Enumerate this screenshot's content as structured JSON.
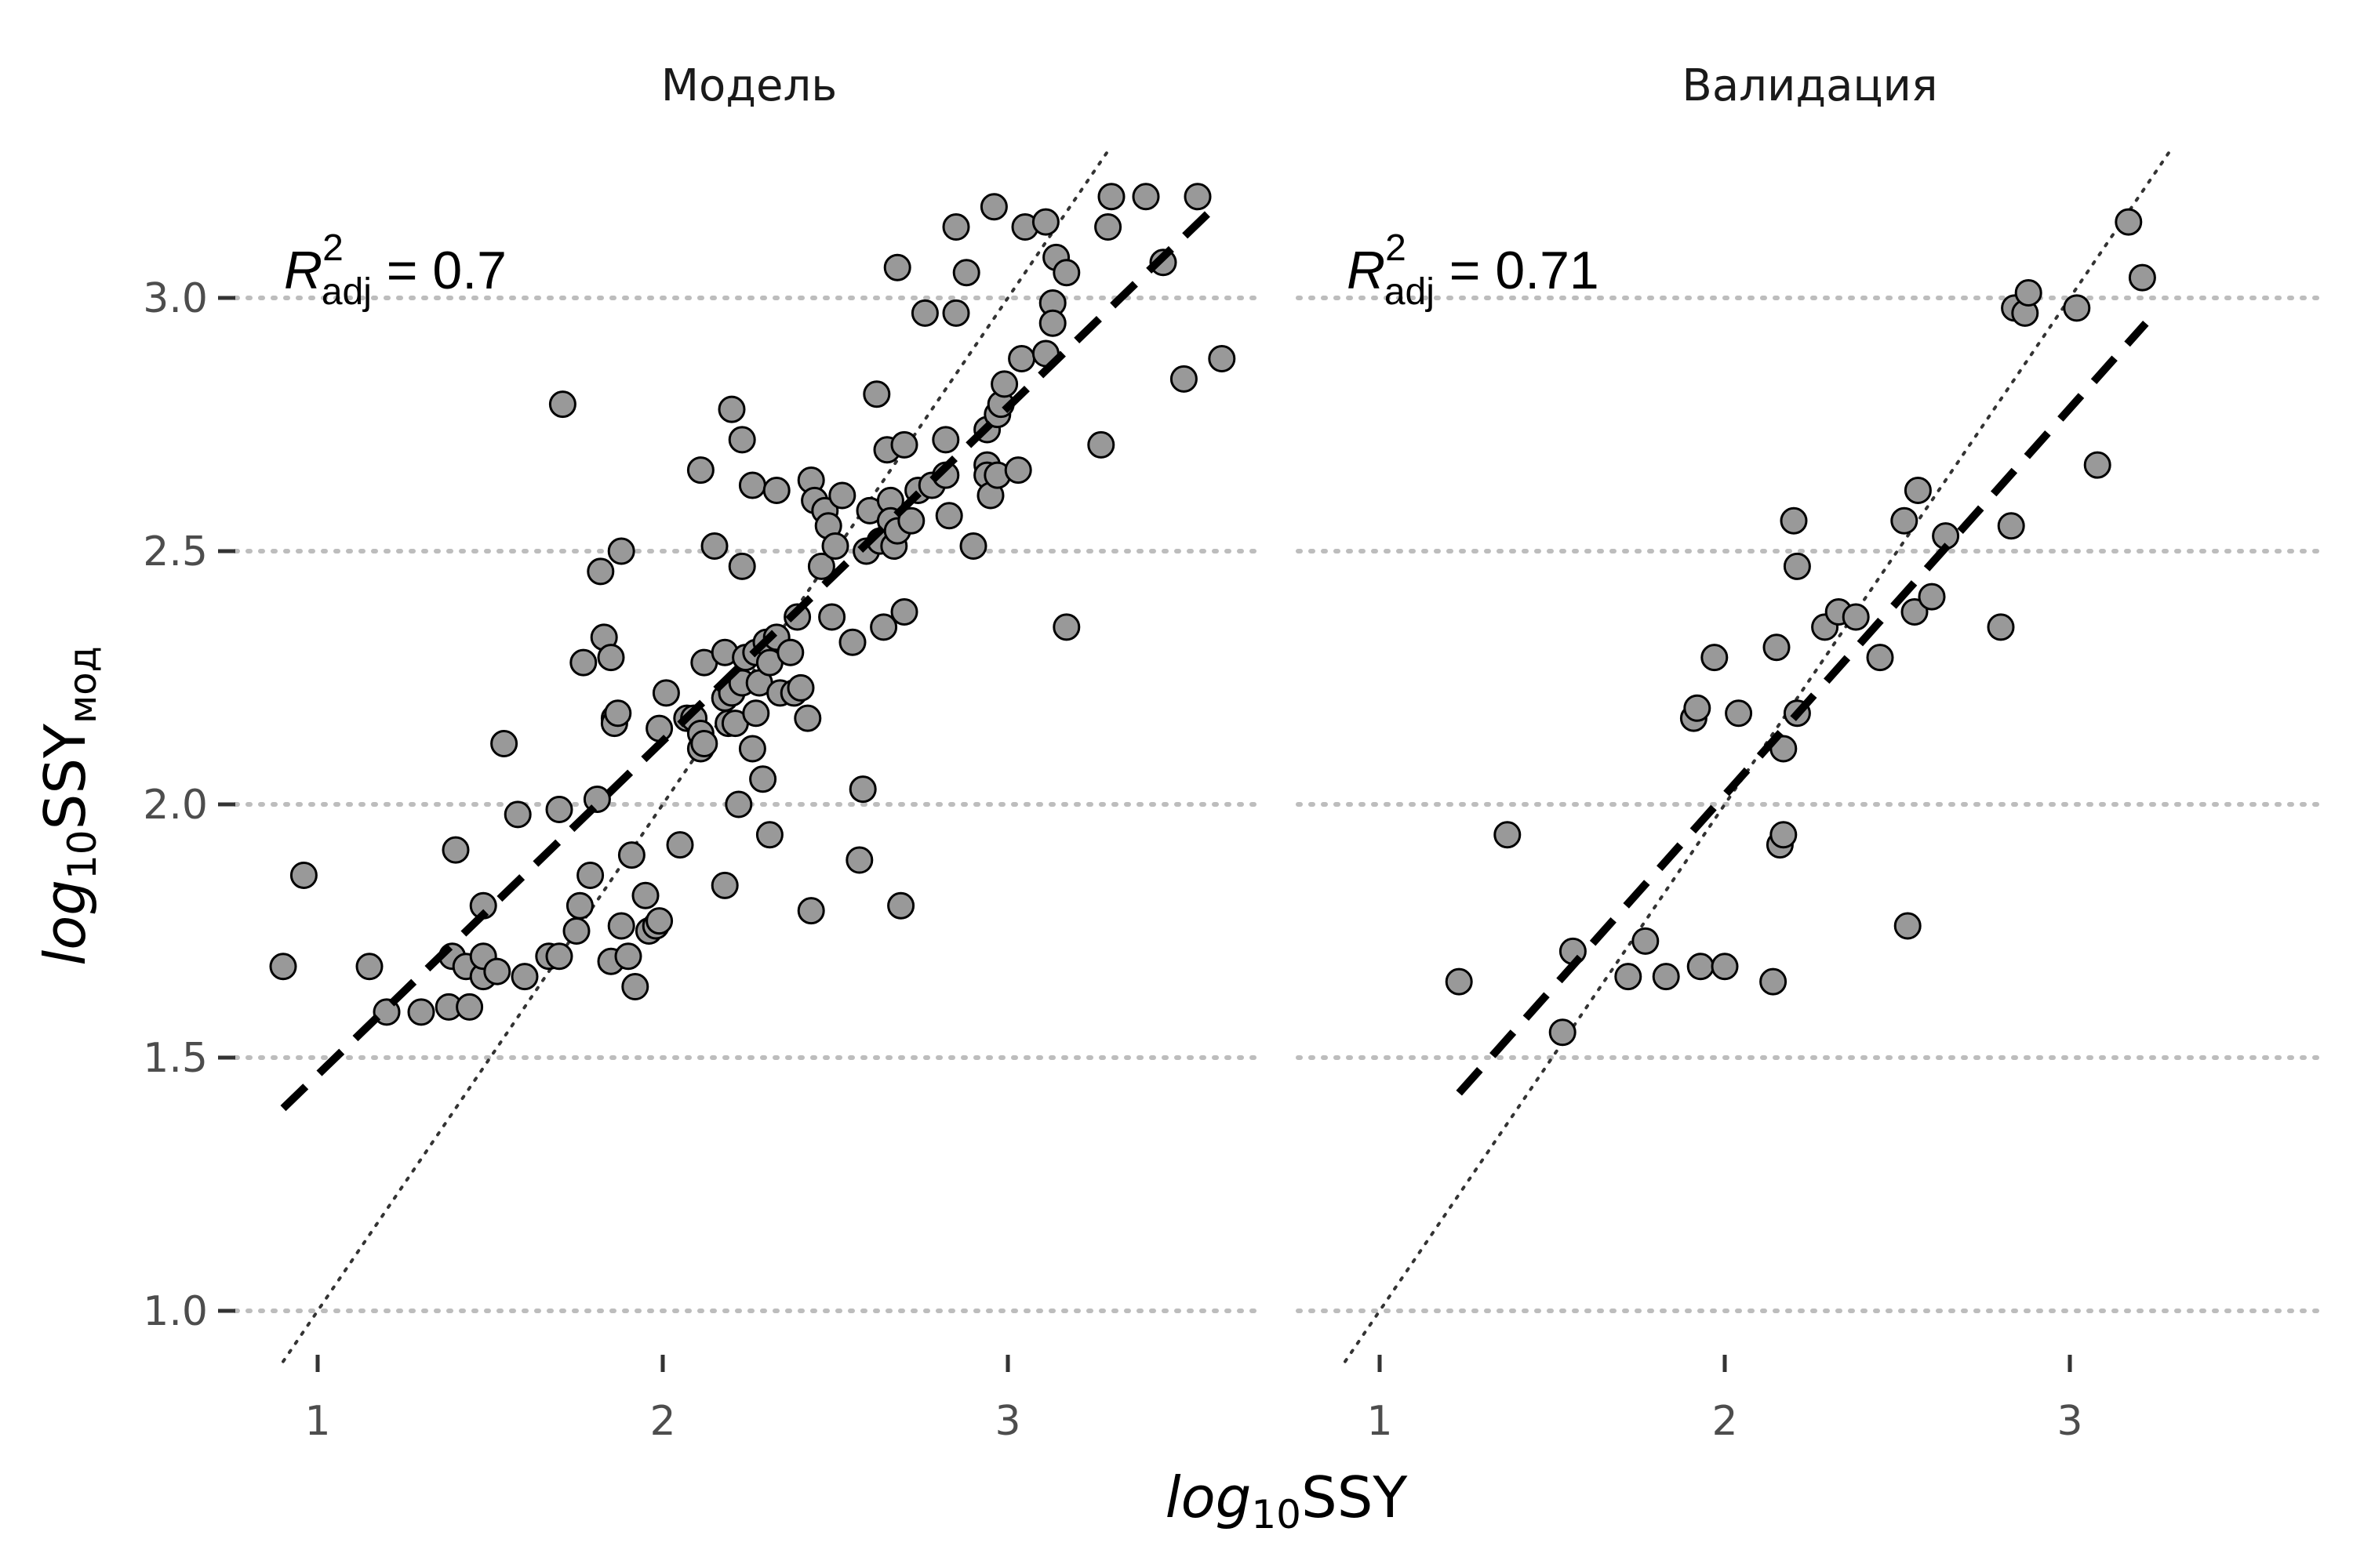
{
  "chart_data": {
    "type": "scatter",
    "xlabel": {
      "pre": "log",
      "sub": "10",
      "post": "SSY"
    },
    "ylabel": {
      "pre": "log",
      "sub": "10",
      "post": "SSY",
      "post_sub": "мод"
    },
    "xlim": [
      0.85,
      3.75
    ],
    "ylim": [
      0.9,
      3.27
    ],
    "x_ticks": [
      1,
      2,
      3
    ],
    "y_ticks": [
      1.0,
      1.5,
      2.0,
      2.5,
      3.0
    ],
    "y_tick_labels": [
      "1.0",
      "1.5",
      "2.0",
      "2.5",
      "3.0"
    ],
    "grid": "horizontal-dotted",
    "point_color": "#999999",
    "point_stroke": "#000000",
    "facets": [
      {
        "title": "Модель",
        "r2_label": {
          "symbol": "R",
          "sup": "2",
          "sub": "adj",
          "value": " = 0.7"
        },
        "fit_line": {
          "x": [
            0.9,
            3.6
          ],
          "y": [
            1.4,
            3.18
          ]
        },
        "identity_line": {
          "x": [
            0.9,
            3.3
          ],
          "y": [
            0.9,
            3.3
          ]
        },
        "points": [
          [
            0.9,
            1.68
          ],
          [
            0.96,
            1.86
          ],
          [
            1.15,
            1.68
          ],
          [
            1.2,
            1.59
          ],
          [
            1.3,
            1.59
          ],
          [
            1.38,
            1.6
          ],
          [
            1.39,
            1.7
          ],
          [
            1.4,
            1.91
          ],
          [
            1.43,
            1.68
          ],
          [
            1.44,
            1.6
          ],
          [
            1.48,
            1.66
          ],
          [
            1.48,
            1.7
          ],
          [
            1.48,
            1.8
          ],
          [
            1.52,
            1.67
          ],
          [
            1.54,
            2.12
          ],
          [
            1.58,
            1.98
          ],
          [
            1.6,
            1.66
          ],
          [
            1.67,
            1.7
          ],
          [
            1.7,
            1.99
          ],
          [
            1.7,
            1.7
          ],
          [
            1.71,
            2.79
          ],
          [
            1.75,
            1.75
          ],
          [
            1.76,
            1.8
          ],
          [
            1.77,
            2.28
          ],
          [
            1.79,
            1.86
          ],
          [
            1.81,
            2.01
          ],
          [
            1.82,
            2.46
          ],
          [
            1.83,
            2.33
          ],
          [
            1.85,
            2.29
          ],
          [
            1.85,
            1.69
          ],
          [
            1.86,
            2.17
          ],
          [
            1.86,
            2.16
          ],
          [
            1.87,
            2.18
          ],
          [
            1.88,
            2.5
          ],
          [
            1.88,
            1.76
          ],
          [
            1.9,
            1.7
          ],
          [
            1.91,
            1.9
          ],
          [
            1.92,
            1.64
          ],
          [
            1.95,
            1.82
          ],
          [
            1.96,
            1.75
          ],
          [
            1.98,
            1.76
          ],
          [
            1.99,
            1.77
          ],
          [
            1.99,
            2.15
          ],
          [
            2.01,
            2.22
          ],
          [
            2.05,
            1.92
          ],
          [
            2.07,
            2.17
          ],
          [
            2.09,
            2.17
          ],
          [
            2.11,
            2.66
          ],
          [
            2.11,
            2.14
          ],
          [
            2.11,
            2.11
          ],
          [
            2.12,
            2.28
          ],
          [
            2.12,
            2.12
          ],
          [
            2.15,
            2.51
          ],
          [
            2.18,
            2.21
          ],
          [
            2.18,
            2.3
          ],
          [
            2.18,
            1.84
          ],
          [
            2.19,
            2.16
          ],
          [
            2.2,
            2.78
          ],
          [
            2.2,
            2.22
          ],
          [
            2.21,
            2.16
          ],
          [
            2.22,
            2.0
          ],
          [
            2.23,
            2.72
          ],
          [
            2.23,
            2.47
          ],
          [
            2.23,
            2.24
          ],
          [
            2.24,
            2.29
          ],
          [
            2.26,
            2.63
          ],
          [
            2.26,
            2.11
          ],
          [
            2.27,
            2.18
          ],
          [
            2.27,
            2.3
          ],
          [
            2.28,
            2.24
          ],
          [
            2.29,
            2.05
          ],
          [
            2.3,
            2.32
          ],
          [
            2.31,
            1.94
          ],
          [
            2.31,
            2.28
          ],
          [
            2.33,
            2.62
          ],
          [
            2.33,
            2.33
          ],
          [
            2.34,
            2.22
          ],
          [
            2.37,
            2.3
          ],
          [
            2.38,
            2.22
          ],
          [
            2.39,
            2.37
          ],
          [
            2.4,
            2.23
          ],
          [
            2.42,
            2.17
          ],
          [
            2.43,
            2.64
          ],
          [
            2.43,
            1.79
          ],
          [
            2.44,
            2.6
          ],
          [
            2.46,
            2.47
          ],
          [
            2.47,
            2.58
          ],
          [
            2.48,
            2.55
          ],
          [
            2.49,
            2.37
          ],
          [
            2.5,
            2.51
          ],
          [
            2.52,
            2.61
          ],
          [
            2.55,
            2.32
          ],
          [
            2.57,
            1.89
          ],
          [
            2.58,
            2.03
          ],
          [
            2.59,
            2.5
          ],
          [
            2.6,
            2.58
          ],
          [
            2.62,
            2.81
          ],
          [
            2.63,
            2.52
          ],
          [
            2.64,
            2.35
          ],
          [
            2.65,
            2.7
          ],
          [
            2.66,
            2.6
          ],
          [
            2.66,
            2.56
          ],
          [
            2.67,
            2.51
          ],
          [
            2.68,
            2.54
          ],
          [
            2.68,
            3.06
          ],
          [
            2.69,
            1.8
          ],
          [
            2.7,
            2.71
          ],
          [
            2.7,
            2.38
          ],
          [
            2.72,
            2.56
          ],
          [
            2.74,
            2.62
          ],
          [
            2.76,
            2.97
          ],
          [
            2.78,
            2.63
          ],
          [
            2.82,
            2.65
          ],
          [
            2.82,
            2.72
          ],
          [
            2.83,
            2.57
          ],
          [
            2.85,
            2.97
          ],
          [
            2.85,
            3.14
          ],
          [
            2.88,
            3.05
          ],
          [
            2.9,
            2.51
          ],
          [
            2.94,
            2.67
          ],
          [
            2.94,
            2.65
          ],
          [
            2.94,
            2.74
          ],
          [
            2.95,
            2.61
          ],
          [
            2.96,
            3.18
          ],
          [
            2.97,
            2.65
          ],
          [
            2.97,
            2.77
          ],
          [
            2.98,
            2.79
          ],
          [
            2.99,
            2.83
          ],
          [
            3.03,
            2.66
          ],
          [
            3.04,
            2.88
          ],
          [
            3.05,
            3.14
          ],
          [
            3.11,
            3.15
          ],
          [
            3.11,
            2.89
          ],
          [
            3.13,
            2.99
          ],
          [
            3.13,
            2.95
          ],
          [
            3.14,
            3.08
          ],
          [
            3.17,
            3.05
          ],
          [
            3.17,
            2.35
          ],
          [
            3.27,
            2.71
          ],
          [
            3.29,
            3.14
          ],
          [
            3.3,
            3.2
          ],
          [
            3.4,
            3.2
          ],
          [
            3.45,
            3.07
          ],
          [
            3.51,
            2.84
          ],
          [
            3.55,
            3.2
          ],
          [
            3.62,
            2.88
          ]
        ]
      },
      {
        "title": "Валидация",
        "r2_label": {
          "symbol": "R",
          "sup": "2",
          "sub": "adj",
          "value": " = 0.71"
        },
        "fit_line": {
          "x": [
            1.23,
            3.22
          ],
          "y": [
            1.43,
            2.95
          ]
        },
        "identity_line": {
          "x": [
            0.9,
            3.3
          ],
          "y": [
            0.9,
            3.3
          ]
        },
        "points": [
          [
            1.23,
            1.65
          ],
          [
            1.37,
            1.94
          ],
          [
            1.53,
            1.55
          ],
          [
            1.56,
            1.71
          ],
          [
            1.72,
            1.66
          ],
          [
            1.77,
            1.73
          ],
          [
            1.83,
            1.66
          ],
          [
            1.91,
            2.17
          ],
          [
            1.92,
            2.19
          ],
          [
            1.93,
            1.68
          ],
          [
            1.97,
            2.29
          ],
          [
            2.0,
            1.68
          ],
          [
            2.04,
            2.18
          ],
          [
            2.14,
            1.65
          ],
          [
            2.15,
            2.31
          ],
          [
            2.16,
            1.92
          ],
          [
            2.17,
            1.94
          ],
          [
            2.17,
            2.11
          ],
          [
            2.2,
            2.56
          ],
          [
            2.21,
            2.47
          ],
          [
            2.21,
            2.18
          ],
          [
            2.29,
            2.35
          ],
          [
            2.33,
            2.38
          ],
          [
            2.38,
            2.37
          ],
          [
            2.45,
            2.29
          ],
          [
            2.52,
            2.56
          ],
          [
            2.53,
            1.76
          ],
          [
            2.55,
            2.38
          ],
          [
            2.56,
            2.62
          ],
          [
            2.6,
            2.41
          ],
          [
            2.64,
            2.53
          ],
          [
            2.8,
            2.35
          ],
          [
            2.83,
            2.55
          ],
          [
            2.84,
            2.98
          ],
          [
            2.87,
            2.97
          ],
          [
            2.88,
            3.01
          ],
          [
            3.02,
            2.98
          ],
          [
            3.08,
            2.67
          ],
          [
            3.17,
            3.15
          ],
          [
            3.21,
            3.04
          ]
        ]
      }
    ]
  }
}
